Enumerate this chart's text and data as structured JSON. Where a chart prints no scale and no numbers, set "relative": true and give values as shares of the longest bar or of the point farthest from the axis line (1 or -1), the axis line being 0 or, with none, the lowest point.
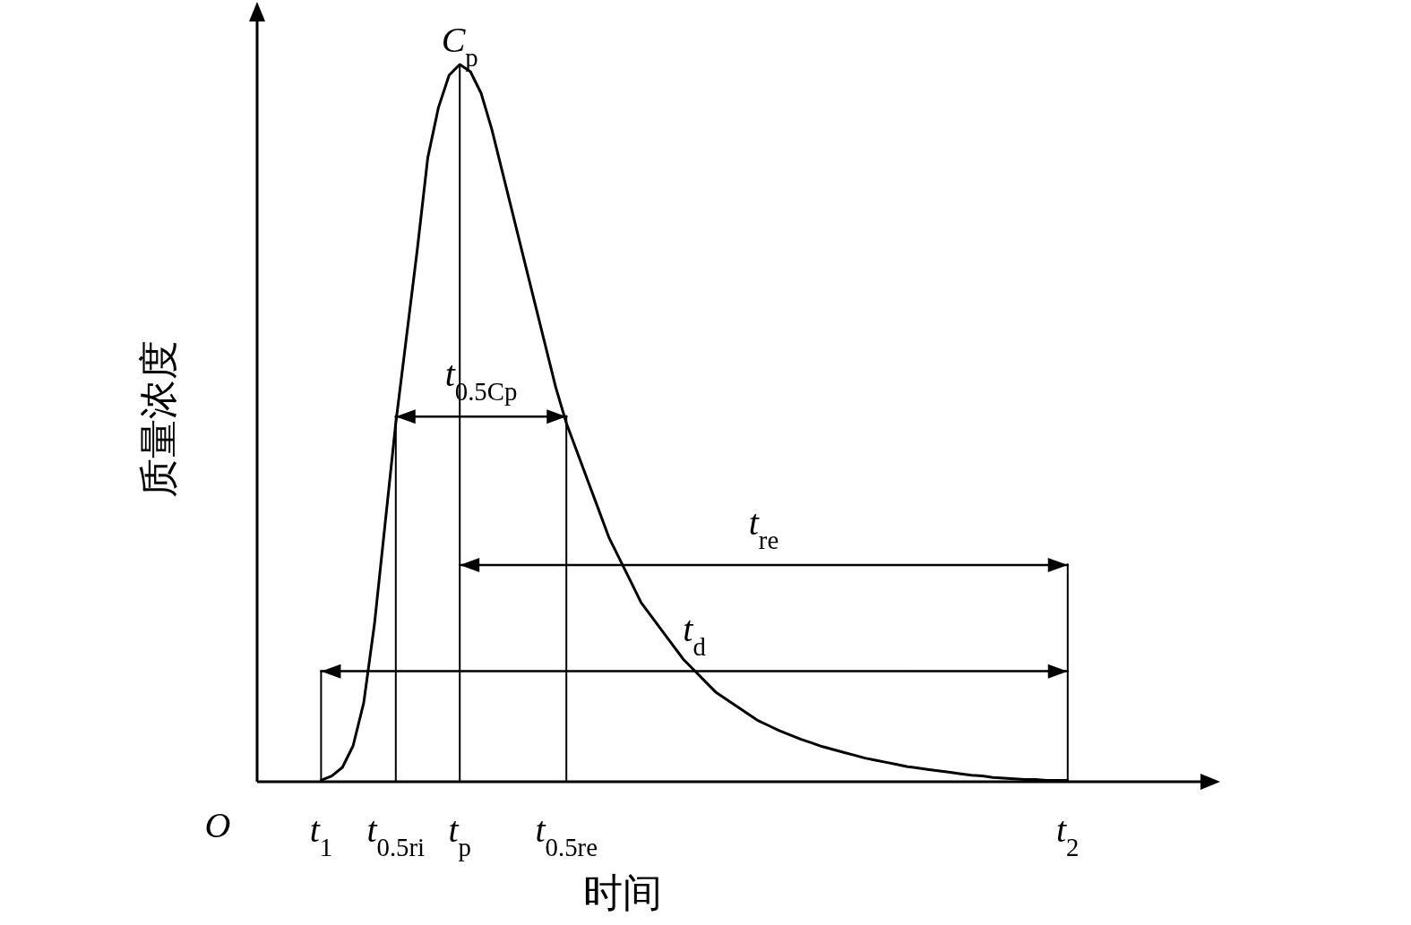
{
  "chart_data": {
    "type": "line",
    "relative": true,
    "xlabel": "时间",
    "ylabel": "质量浓度",
    "categories": [
      null,
      null,
      null,
      null,
      null,
      null,
      "t$_{1}$",
      null,
      null,
      null,
      null,
      null,
      null,
      "t$_{0.5ri}$",
      null,
      null,
      null,
      null,
      null,
      "t$_{p}$",
      null,
      null,
      null,
      null,
      null,
      null,
      null,
      null,
      null,
      "t$_{0.5re}$",
      null,
      null,
      null,
      null,
      null,
      null,
      null,
      null,
      null,
      null,
      null,
      null,
      null,
      null,
      null,
      null,
      null,
      null,
      null,
      null,
      null,
      null,
      null,
      null,
      null,
      null,
      null,
      null,
      null,
      null,
      null,
      null,
      null,
      null,
      null,
      null,
      null,
      null,
      null,
      null,
      null,
      null,
      null,
      null,
      null,
      null,
      "t$_{2}$",
      null,
      null,
      null,
      null,
      null,
      null,
      null,
      null,
      null,
      null,
      null,
      null,
      null,
      null
    ],
    "series": [
      {
        "color": "#000000",
        "values": [
          null,
          null,
          null,
          null,
          null,
          null,
          0.002,
          0.008,
          0.02,
          0.05,
          0.11,
          0.22,
          0.36,
          0.5,
          0.62,
          0.74,
          0.87,
          0.94,
          0.985,
          1.0,
          0.99,
          0.96,
          0.91,
          0.85,
          0.79,
          0.73,
          0.67,
          0.61,
          0.55,
          0.5,
          0.46,
          0.42,
          0.38,
          0.34,
          0.31,
          0.28,
          0.25,
          0.23,
          0.21,
          0.19,
          0.17,
          0.155,
          0.14,
          0.125,
          0.115,
          0.105,
          0.095,
          0.085,
          0.078,
          0.071,
          0.065,
          0.059,
          0.054,
          0.049,
          0.045,
          0.041,
          0.037,
          0.033,
          0.03,
          0.027,
          0.024,
          0.021,
          0.019,
          0.017,
          0.015,
          0.013,
          0.011,
          0.009,
          0.008,
          0.006,
          0.005,
          0.004,
          0.003,
          0.003,
          0.002,
          0.002,
          0.002,
          null,
          null,
          null,
          null,
          null,
          null,
          null,
          null,
          null,
          null,
          null,
          null,
          null,
          null
        ]
      },
      {
        "color": "#000000",
        "x": [
          "t$_{1}$",
          "t$_{1}$"
        ],
        "values": [
          0,
          0.154
        ]
      },
      {
        "color": "#000000",
        "x": [
          "t$_{0.5ri}$",
          "t$_{0.5ri}$"
        ],
        "values": [
          0,
          0.51
        ]
      },
      {
        "color": "#000000",
        "x": [
          "t$_{p}$",
          "t$_{p}$"
        ],
        "values": [
          0,
          1
        ]
      },
      {
        "color": "#000000",
        "x": [
          "t$_{0.5re}$",
          "t$_{0.5re}$"
        ],
        "values": [
          0,
          0.51
        ]
      },
      {
        "color": "#000000",
        "x": [
          "t$_{2}$",
          "t$_{2}$"
        ],
        "values": [
          0,
          0.303
        ]
      },
      {
        "color": "#000000",
        "marker": "triangle",
        "x": [
          "t$_{0.5ri}$",
          "t$_{0.5re}$"
        ],
        "values": [
          0.509,
          0.509
        ]
      },
      {
        "color": "#000000",
        "marker": "triangle",
        "x": [
          "t$_{p}$",
          "t$_{2}$"
        ],
        "values": [
          0.302,
          0.302
        ]
      },
      {
        "color": "#000000",
        "marker": "triangle",
        "x": [
          "t$_{1}$",
          "t$_{2}$"
        ],
        "values": [
          0.154,
          0.154
        ]
      }
    ],
    "annotations": [
      "O",
      {
        "text": "C$_{p}$",
        "x": "t$_{p}$",
        "y": 1
      },
      {
        "text": "t$_{0.5Cp}$",
        "y": 0.509
      },
      {
        "text": "t$_{re}$",
        "y": 0.302
      },
      {
        "text": "t$_{d}$",
        "y": 0.154
      }
    ]
  }
}
